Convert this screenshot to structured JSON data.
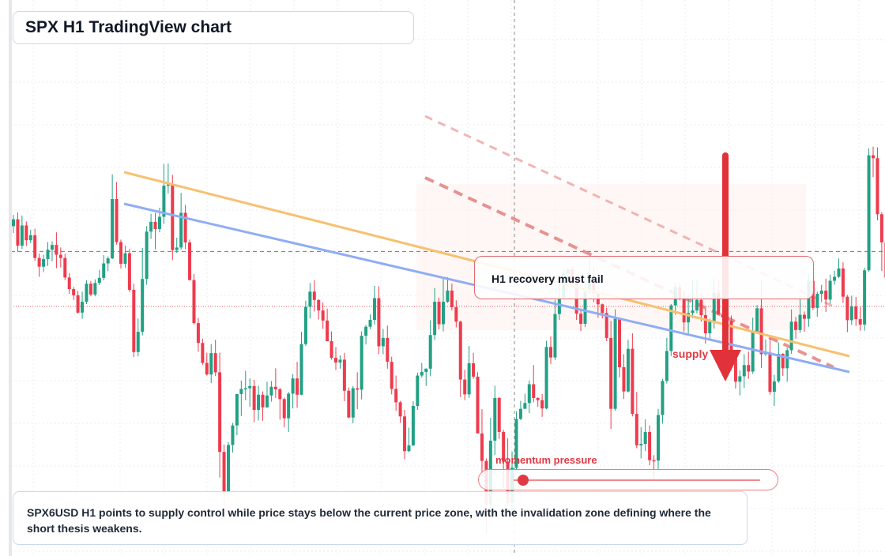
{
  "title": "SPX H1 TradingView chart",
  "callout": "H1 recovery must fail",
  "supply_label": "supply",
  "momentum": {
    "label": "momentum pressure",
    "level": 0.04
  },
  "summary": "SPX6USD H1 points to supply control while price stays below the current price zone, with the invalidation zone defining where the short thesis weakens.",
  "colors": {
    "up": "#22a084",
    "down": "#ee3b4d",
    "orange_trend": "#f8c06f",
    "blue_trend": "#8fadf5",
    "red_dashed": "#e88b8b",
    "arrow": "#e03238",
    "zone": "#fdf2ee"
  },
  "chart_data": {
    "type": "candlestick",
    "grid": true,
    "ylim": [
      0,
      100
    ],
    "current_price_line": 66.5,
    "prev_close_line": 51.3,
    "candles": [
      [
        73.5,
        75.4,
        71.6,
        76.6
      ],
      [
        75.4,
        68.1,
        66.4,
        77.3
      ],
      [
        68.1,
        73.7,
        67.2,
        76.4
      ],
      [
        73.7,
        69.6,
        68.0,
        74.8
      ],
      [
        69.6,
        71.0,
        68.8,
        72.5
      ],
      [
        71.0,
        64.7,
        63.9,
        72.8
      ],
      [
        64.7,
        62.3,
        59.5,
        65.9
      ],
      [
        62.3,
        64.4,
        60.8,
        65.6
      ],
      [
        64.4,
        67.0,
        62.5,
        69.1
      ],
      [
        67.0,
        68.3,
        63.8,
        69.3
      ],
      [
        68.3,
        65.6,
        61.9,
        71.8
      ],
      [
        65.6,
        64.7,
        62.1,
        67.6
      ],
      [
        64.7,
        59.3,
        58.6,
        65.9
      ],
      [
        59.3,
        56.1,
        54.8,
        60.5
      ],
      [
        56.1,
        54.4,
        53.1,
        56.7
      ],
      [
        54.4,
        49.6,
        49.3,
        55.6
      ],
      [
        49.6,
        52.6,
        47.9,
        55.4
      ],
      [
        52.6,
        57.6,
        52.0,
        58.5
      ],
      [
        57.6,
        54.6,
        54.1,
        58.3
      ],
      [
        54.6,
        57.8,
        54.1,
        58.8
      ],
      [
        57.8,
        59.2,
        57.2,
        61.4
      ],
      [
        59.2,
        63.2,
        58.5,
        65.5
      ],
      [
        63.2,
        64.6,
        61.1,
        65.1
      ],
      [
        64.6,
        81.0,
        64.4,
        87.8
      ],
      [
        81.0,
        69.1,
        68.4,
        85.7
      ],
      [
        69.1,
        63.1,
        61.8,
        69.8
      ],
      [
        63.1,
        66.0,
        62.0,
        68.1
      ],
      [
        66.0,
        55.9,
        55.3,
        67.2
      ],
      [
        55.9,
        38.7,
        37.3,
        57.6
      ],
      [
        38.7,
        44.3,
        37.5,
        48.0
      ],
      [
        44.3,
        58.9,
        43.3,
        67.5
      ],
      [
        58.9,
        72.0,
        57.3,
        73.5
      ],
      [
        72.0,
        74.7,
        70.0,
        76.9
      ],
      [
        74.7,
        72.7,
        67.1,
        77.2
      ],
      [
        72.7,
        76.1,
        71.8,
        78.6
      ],
      [
        76.1,
        84.7,
        74.1,
        90.7
      ],
      [
        84.7,
        85.0,
        82.5,
        90.8
      ],
      [
        85.0,
        66.9,
        64.1,
        87.7
      ],
      [
        66.9,
        67.6,
        66.1,
        70.3
      ],
      [
        67.6,
        77.2,
        67.0,
        82.7
      ],
      [
        77.2,
        69.0,
        67.1,
        79.4
      ],
      [
        69.0,
        58.6,
        58.5,
        69.8
      ],
      [
        58.6,
        46.7,
        46.3,
        60.3
      ],
      [
        46.7,
        41.2,
        38.8,
        48.1
      ],
      [
        41.2,
        35.7,
        35.2,
        42.4
      ],
      [
        35.7,
        32.5,
        32.2,
        38.5
      ],
      [
        32.5,
        38.4,
        30.1,
        40.9
      ],
      [
        38.4,
        33.1,
        32.1,
        42.1
      ],
      [
        33.1,
        11.1,
        4.0,
        38.5
      ],
      [
        11.1,
        0.0,
        -4.5,
        13.1
      ],
      [
        0.0,
        13.0,
        -1.9,
        13.8
      ],
      [
        13.0,
        18.4,
        10.9,
        19.1
      ],
      [
        18.4,
        27.1,
        15.7,
        27.1
      ],
      [
        27.1,
        28.5,
        21.0,
        30.8
      ],
      [
        28.5,
        28.7,
        25.4,
        33.5
      ],
      [
        28.7,
        29.3,
        23.6,
        31.4
      ],
      [
        29.3,
        22.7,
        19.3,
        31.0
      ],
      [
        22.7,
        26.9,
        19.8,
        29.4
      ],
      [
        26.9,
        23.4,
        19.7,
        27.8
      ],
      [
        23.4,
        26.7,
        23.3,
        30.5
      ],
      [
        26.7,
        29.1,
        25.0,
        30.7
      ],
      [
        29.1,
        28.4,
        26.0,
        34.2
      ],
      [
        28.4,
        25.7,
        20.0,
        28.8
      ],
      [
        25.7,
        20.4,
        17.9,
        26.1
      ],
      [
        20.4,
        27.2,
        16.6,
        27.7
      ],
      [
        27.2,
        31.4,
        23.1,
        32.6
      ],
      [
        31.4,
        26.9,
        23.3,
        36.0
      ],
      [
        26.9,
        40.9,
        26.8,
        44.3
      ],
      [
        40.9,
        51.2,
        40.4,
        52.9
      ],
      [
        51.2,
        55.4,
        48.0,
        57.8
      ],
      [
        55.4,
        53.1,
        49.9,
        58.6
      ],
      [
        53.1,
        50.2,
        47.7,
        53.3
      ],
      [
        50.2,
        47.4,
        45.1,
        52.4
      ],
      [
        47.4,
        41.7,
        41.7,
        50.7
      ],
      [
        41.7,
        37.1,
        36.6,
        44.4
      ],
      [
        37.1,
        35.8,
        33.7,
        40.1
      ],
      [
        35.8,
        36.6,
        34.1,
        37.8
      ],
      [
        36.6,
        28.0,
        25.1,
        38.5
      ],
      [
        28.0,
        20.6,
        20.4,
        28.9
      ],
      [
        20.6,
        28.7,
        19.0,
        29.3
      ],
      [
        28.7,
        28.3,
        22.9,
        33.1
      ],
      [
        28.3,
        43.2,
        25.6,
        44.4
      ],
      [
        43.2,
        45.7,
        40.8,
        46.2
      ],
      [
        45.7,
        47.6,
        45.1,
        49.1
      ],
      [
        47.6,
        53.6,
        46.3,
        57.0
      ],
      [
        53.6,
        40.3,
        38.1,
        56.9
      ],
      [
        40.3,
        42.6,
        38.1,
        45.1
      ],
      [
        42.6,
        36.0,
        34.1,
        46.0
      ],
      [
        36.0,
        28.5,
        27.0,
        37.4
      ],
      [
        28.5,
        24.8,
        22.5,
        32.2
      ],
      [
        24.8,
        20.9,
        19.1,
        25.2
      ],
      [
        20.9,
        11.3,
        9.0,
        22.7
      ],
      [
        11.3,
        12.9,
        11.0,
        17.8
      ],
      [
        12.9,
        23.8,
        12.7,
        25.1
      ],
      [
        23.8,
        32.2,
        22.7,
        33.0
      ],
      [
        32.2,
        33.2,
        31.6,
        35.7
      ],
      [
        33.2,
        34.1,
        29.3,
        34.2
      ],
      [
        34.1,
        43.4,
        32.0,
        47.5
      ],
      [
        43.4,
        52.6,
        42.0,
        56.4
      ],
      [
        52.6,
        46.4,
        45.0,
        53.7
      ],
      [
        46.4,
        52.6,
        44.4,
        59.4
      ],
      [
        52.6,
        55.7,
        52.3,
        59.4
      ],
      [
        55.7,
        51.1,
        50.2,
        57.6
      ],
      [
        51.1,
        47.1,
        45.5,
        53.0
      ],
      [
        47.1,
        31.1,
        26.3,
        47.4
      ],
      [
        31.1,
        27.0,
        25.4,
        33.8
      ],
      [
        27.0,
        35.6,
        26.0,
        40.4
      ],
      [
        35.6,
        31.9,
        31.3,
        38.5
      ],
      [
        31.9,
        16.2,
        16.2,
        33.1
      ],
      [
        16.2,
        8.6,
        4.3,
        22.9
      ],
      [
        8.6,
        -3.6,
        -11.6,
        9.3
      ],
      [
        -3.6,
        14.2,
        -5.8,
        20.5
      ],
      [
        14.2,
        26.0,
        10.3,
        29.4
      ],
      [
        26.0,
        16.6,
        14.6,
        26.3
      ],
      [
        16.6,
        8.4,
        1.2,
        17.2
      ],
      [
        8.4,
        -3.1,
        -3.8,
        14.9
      ],
      [
        -3.1,
        6.7,
        -6.7,
        11.2
      ],
      [
        6.7,
        20.2,
        6.3,
        22.3
      ],
      [
        20.2,
        23.0,
        19.9,
        25.2
      ],
      [
        23.0,
        24.6,
        23.0,
        27.2
      ],
      [
        24.6,
        29.8,
        21.8,
        30.8
      ],
      [
        29.8,
        26.0,
        24.8,
        35.1
      ],
      [
        26.0,
        25.4,
        23.6,
        26.2
      ],
      [
        25.4,
        23.1,
        20.8,
        27.1
      ],
      [
        23.1,
        40.1,
        22.9,
        41.8
      ],
      [
        40.1,
        37.2,
        35.4,
        43.0
      ],
      [
        37.2,
        49.2,
        36.5,
        53.1
      ],
      [
        49.2,
        53.8,
        47.6,
        60.1
      ],
      [
        53.8,
        60.3,
        53.3,
        61.3
      ],
      [
        60.3,
        61.5,
        59.1,
        61.7
      ],
      [
        61.5,
        58.0,
        57.5,
        62.4
      ],
      [
        58.0,
        49.3,
        47.6,
        59.8
      ],
      [
        49.3,
        46.5,
        44.5,
        50.6
      ],
      [
        46.5,
        55.3,
        45.6,
        59.2
      ],
      [
        55.3,
        58.0,
        54.6,
        64.9
      ],
      [
        58.0,
        55.0,
        52.5,
        62.1
      ],
      [
        55.0,
        51.9,
        48.2,
        55.4
      ],
      [
        51.9,
        49.5,
        48.0,
        52.1
      ],
      [
        49.5,
        42.6,
        41.7,
        50.9
      ],
      [
        42.6,
        23.0,
        17.4,
        47.3
      ],
      [
        23.0,
        47.9,
        22.5,
        50.5
      ],
      [
        47.9,
        34.5,
        31.7,
        48.1
      ],
      [
        34.5,
        27.8,
        25.7,
        38.1
      ],
      [
        27.8,
        39.6,
        27.5,
        42.1
      ],
      [
        39.6,
        21.6,
        20.9,
        43.9
      ],
      [
        21.6,
        12.9,
        12.1,
        27.7
      ],
      [
        12.9,
        13.3,
        9.3,
        17.9
      ],
      [
        13.3,
        16.6,
        11.3,
        20.1
      ],
      [
        16.6,
        8.8,
        7.4,
        18.4
      ],
      [
        8.8,
        8.7,
        3.6,
        10.2
      ],
      [
        8.7,
        21.3,
        6.3,
        23.0
      ],
      [
        21.3,
        30.7,
        18.9,
        31.3
      ],
      [
        30.7,
        39.0,
        30.0,
        42.6
      ],
      [
        39.0,
        51.6,
        37.6,
        52.0
      ],
      [
        51.6,
        56.7,
        49.0,
        58.0
      ],
      [
        56.7,
        53.4,
        53.0,
        57.9
      ],
      [
        53.4,
        46.9,
        44.3,
        55.7
      ],
      [
        46.9,
        49.5,
        43.6,
        54.5
      ],
      [
        49.5,
        50.2,
        48.1,
        58.8
      ],
      [
        50.2,
        53.1,
        49.4,
        58.7
      ],
      [
        53.1,
        48.9,
        47.1,
        55.0
      ],
      [
        48.9,
        43.9,
        41.0,
        50.7
      ],
      [
        43.9,
        47.1,
        42.5,
        47.9
      ],
      [
        47.1,
        55.1,
        45.2,
        59.0
      ],
      [
        55.1,
        49.2,
        48.9,
        58.6
      ],
      [
        49.2,
        48.3,
        47.5,
        50.9
      ],
      [
        48.3,
        47.3,
        43.8,
        48.7
      ],
      [
        47.3,
        36.9,
        33.7,
        48.8
      ],
      [
        36.9,
        30.5,
        28.6,
        37.1
      ],
      [
        30.5,
        32.0,
        26.7,
        33.6
      ],
      [
        32.0,
        35.1,
        28.8,
        38.1
      ],
      [
        35.1,
        33.3,
        31.3,
        38.8
      ],
      [
        33.3,
        44.6,
        32.7,
        48.2
      ],
      [
        44.6,
        50.8,
        44.4,
        51.7
      ],
      [
        50.8,
        38.1,
        34.3,
        58.8
      ],
      [
        38.1,
        38.6,
        37.6,
        42.2
      ],
      [
        38.6,
        27.7,
        26.9,
        42.6
      ],
      [
        27.7,
        30.6,
        23.8,
        32.4
      ],
      [
        30.6,
        38.2,
        30.2,
        41.4
      ],
      [
        38.2,
        34.2,
        32.1,
        38.4
      ],
      [
        34.2,
        39.2,
        30.5,
        39.9
      ],
      [
        39.2,
        47.1,
        38.2,
        50.5
      ],
      [
        47.1,
        44.8,
        42.4,
        48.4
      ],
      [
        44.8,
        49.0,
        44.0,
        54.1
      ],
      [
        49.0,
        47.9,
        44.3,
        49.9
      ],
      [
        47.9,
        58.4,
        45.7,
        60.2
      ],
      [
        58.4,
        50.9,
        50.3,
        60.9
      ],
      [
        50.9,
        54.8,
        48.5,
        55.4
      ],
      [
        54.8,
        55.7,
        52.5,
        57.3
      ],
      [
        55.7,
        53.2,
        49.8,
        59.0
      ],
      [
        53.2,
        58.4,
        52.1,
        60.1
      ],
      [
        58.4,
        59.5,
        57.3,
        61.2
      ],
      [
        59.5,
        61.8,
        59.2,
        64.6
      ],
      [
        61.8,
        54.0,
        52.3,
        63.5
      ],
      [
        54.0,
        47.5,
        44.2,
        54.5
      ],
      [
        47.5,
        51.3,
        46.2,
        54.3
      ],
      [
        51.3,
        47.8,
        45.9,
        53.9
      ],
      [
        47.8,
        46.3,
        44.6,
        51.3
      ],
      [
        46.3,
        61.3,
        44.6,
        62.0
      ],
      [
        61.3,
        93.1,
        60.8,
        95.0
      ],
      [
        93.1,
        92.3,
        87.1,
        95.5
      ],
      [
        92.3,
        76.8,
        75.1,
        95.3
      ],
      [
        76.8,
        69.0,
        61.1,
        77.4
      ],
      [
        69.0,
        59.3,
        59.2,
        71.2
      ],
      [
        59.3,
        54.4,
        54.4,
        59.6
      ],
      [
        54.4,
        51.0,
        49.8,
        55.8
      ],
      [
        51.0,
        52.9,
        48.6,
        56.1
      ],
      [
        52.9,
        50.5,
        49.7,
        53.8
      ]
    ]
  }
}
